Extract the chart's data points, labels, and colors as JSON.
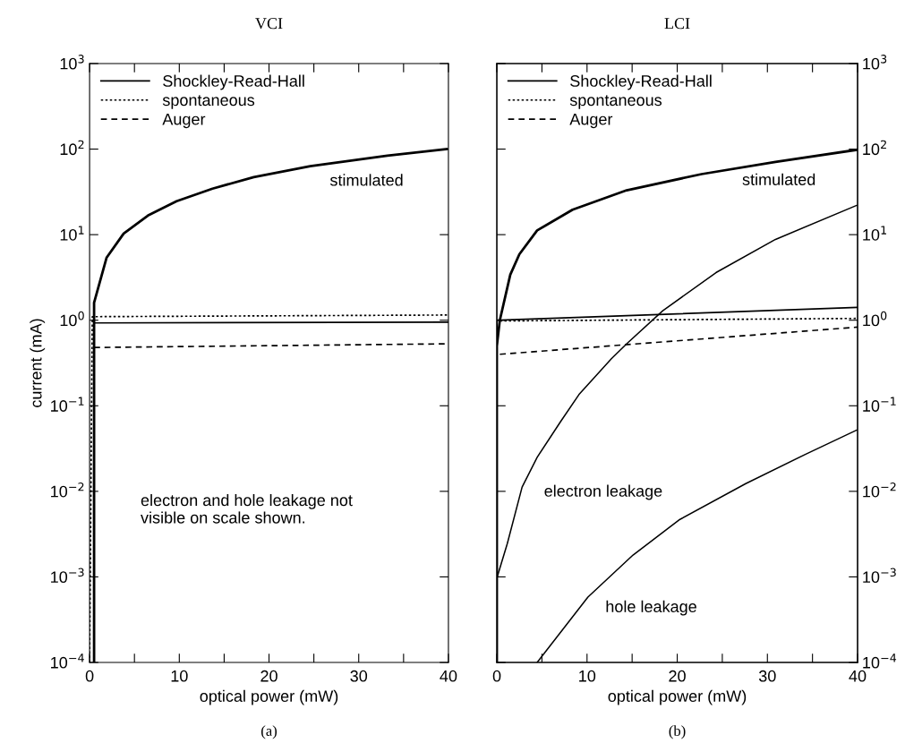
{
  "chart_data": [
    {
      "type": "line",
      "title": "VCI",
      "xlabel": "optical power (mW)",
      "ylabel": "current (mA)",
      "log": "y",
      "legend": "top left",
      "grid": false,
      "xlim": [
        0,
        40
      ],
      "xticks": [
        0,
        {
          "value": 5,
          "label": null
        },
        10,
        {
          "value": 15,
          "label": null
        },
        20,
        {
          "value": 25,
          "label": null
        },
        30,
        {
          "value": 35,
          "label": null
        },
        40
      ],
      "ylim": [
        0.0001,
        1000
      ],
      "yticks": [
        {
          "value": 0.0001,
          "label": "10$^{−4}$"
        },
        {
          "value": 0.001,
          "label": "10$^{−3}$"
        },
        {
          "value": 0.01,
          "label": "10$^{−2}$"
        },
        {
          "value": 0.1,
          "label": "10$^{−1}$"
        },
        {
          "value": 1,
          "label": "10$^{0}$"
        },
        {
          "value": 10,
          "label": "10$^{1}$"
        },
        {
          "value": 100,
          "label": "10$^{2}$"
        },
        {
          "value": 1000,
          "label": "10$^{3}$"
        }
      ],
      "series": [
        {
          "name": "Shockley-Read-Hall",
          "color": "#000000",
          "line_style": "solid",
          "x": [
            0.5,
            0.5,
            40
          ],
          "values": [
            0.0001,
            0.93,
            0.95
          ]
        },
        {
          "name": "spontaneous",
          "color": "#000000",
          "line_style": "dotted",
          "x": [
            0,
            0.3,
            40
          ],
          "values": [
            0.0001,
            1.1,
            1.15
          ]
        },
        {
          "name": "Auger",
          "color": "#000000",
          "line_style": "dashed",
          "x": [
            0.5,
            40
          ],
          "values": [
            0.48,
            0.53
          ]
        },
        {
          "color": "#000000",
          "line_style": "solid",
          "x": [
            0.5,
            0.5,
            1.9,
            3.8,
            6.5,
            9.7,
            13.7,
            18.3,
            24.6,
            33.2,
            39.8
          ],
          "values": [
            0.0001,
            1.6,
            5.4,
            10.3,
            16.7,
            24.6,
            34.5,
            47,
            63,
            84,
            100
          ]
        }
      ],
      "annotations": [
        "(a)",
        "electron and hole leakage not\nvisible on scale shown.",
        "stimulated"
      ]
    },
    {
      "type": "line",
      "title": "LCI",
      "xlabel": "optical power (mW)",
      "log": "y2",
      "legend": "top left",
      "grid": false,
      "xlim": [
        0,
        40
      ],
      "xticks": [
        0,
        {
          "value": 5,
          "label": null
        },
        10,
        {
          "value": 15,
          "label": null
        },
        20,
        {
          "value": 25,
          "label": null
        },
        30,
        {
          "value": 35,
          "label": null
        },
        40
      ],
      "y2lim": [
        0.0001,
        1000
      ],
      "y2ticks": [
        {
          "value": 0.0001,
          "label": "10$^{−4}$"
        },
        {
          "value": 0.001,
          "label": "10$^{−3}$"
        },
        {
          "value": 0.01,
          "label": "10$^{−2}$"
        },
        {
          "value": 0.1,
          "label": "10$^{−1}$"
        },
        {
          "value": 1,
          "label": "10$^{0}$"
        },
        {
          "value": 10,
          "label": "10$^{1}$"
        },
        {
          "value": 100,
          "label": "10$^{2}$"
        },
        {
          "value": 1000,
          "label": "10$^{3}$"
        }
      ],
      "series": [
        {
          "name": "Shockley-Read-Hall",
          "color": "#000000",
          "line_style": "solid",
          "axis": "y2",
          "x": [
            0,
            0,
            0.33,
            40
          ],
          "values": [
            0.0001,
            1.0,
            1.0,
            1.41
          ]
        },
        {
          "name": "spontaneous",
          "color": "#000000",
          "line_style": "dotted",
          "axis": "y2",
          "x": [
            0,
            0,
            40
          ],
          "values": [
            0.0001,
            0.98,
            1.05
          ]
        },
        {
          "name": "Auger",
          "color": "#000000",
          "line_style": "dashed",
          "axis": "y2",
          "x": [
            0.33,
            40
          ],
          "values": [
            0.4,
            0.83
          ]
        },
        {
          "color": "#000000",
          "line_style": "solid",
          "axis": "y2",
          "x": [
            0,
            0,
            0.33,
            1.49,
            2.5,
            4.47,
            8.4,
            14.4,
            22.7,
            30.9,
            39.9
          ],
          "values": [
            0.0001,
            0.5,
            1.0,
            3.4,
            5.9,
            11.2,
            19.6,
            33,
            51,
            71,
            98
          ]
        },
        {
          "color": "#000000",
          "line_style": "solid",
          "axis": "y2",
          "x": [
            0.04,
            1.16,
            2.8,
            4.47,
            7.1,
            9.1,
            12.7,
            14.4,
            18.4,
            24.3,
            30.9,
            39.9
          ],
          "values": [
            0.001,
            0.00245,
            0.0112,
            0.025,
            0.066,
            0.135,
            0.355,
            0.53,
            1.29,
            3.6,
            8.8,
            22
          ]
        },
        {
          "color": "#000000",
          "line_style": "solid",
          "axis": "y2",
          "x": [
            4.47,
            10.1,
            15.1,
            20.3,
            27.6,
            34.2,
            39.9
          ],
          "values": [
            0.0001,
            0.00058,
            0.0018,
            0.0047,
            0.0123,
            0.027,
            0.052
          ]
        }
      ],
      "annotations": [
        "(b)",
        "stimulated",
        "electron leakage",
        "hole leakage"
      ]
    }
  ]
}
